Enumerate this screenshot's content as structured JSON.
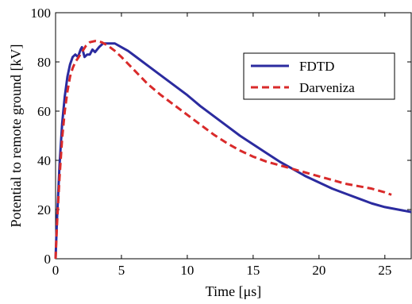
{
  "chart_data": {
    "type": "line",
    "xlabel": "Time [μs]",
    "ylabel": "Potential to remote ground [kV]",
    "xlim": [
      0,
      27
    ],
    "ylim": [
      0,
      100
    ],
    "xticks": [
      0,
      5,
      10,
      15,
      20,
      25
    ],
    "yticks": [
      0,
      20,
      40,
      60,
      80,
      100
    ],
    "x_tick_labels": [
      "0",
      "5",
      "10",
      "15",
      "20",
      "25"
    ],
    "y_tick_labels": [
      "0",
      "20",
      "40",
      "60",
      "80",
      "100"
    ],
    "grid": false,
    "legend_position": "top-right",
    "series": [
      {
        "name": "FDTD",
        "color": "#2b2b9f",
        "style": "solid",
        "x": [
          0,
          0.1,
          0.3,
          0.5,
          0.7,
          0.9,
          1.1,
          1.3,
          1.5,
          1.7,
          1.9,
          2.0,
          2.2,
          2.4,
          2.6,
          2.8,
          3.0,
          3.3,
          3.6,
          4.0,
          4.5,
          5.0,
          5.5,
          6.0,
          7.0,
          8.0,
          9.0,
          10.0,
          11.0,
          12.0,
          13.0,
          14.0,
          15.0,
          16.0,
          17.0,
          18.0,
          19.0,
          20.0,
          21.0,
          22.0,
          23.0,
          24.0,
          25.0,
          26.0,
          27.0
        ],
        "values": [
          0,
          15,
          38,
          55,
          66,
          74,
          79,
          82,
          83,
          82,
          85,
          86,
          82,
          83,
          83,
          85,
          84,
          86,
          87.5,
          87.5,
          87.5,
          86,
          84.5,
          82.5,
          78.5,
          74.5,
          70.5,
          66.5,
          62,
          58,
          54,
          50,
          46.5,
          43,
          39.5,
          36.5,
          33.5,
          31,
          28.5,
          26.5,
          24.5,
          22.5,
          21,
          20,
          19
        ]
      },
      {
        "name": "Darveniza",
        "color": "#d92a2a",
        "style": "dashed",
        "x": [
          0,
          0.1,
          0.3,
          0.5,
          0.7,
          0.9,
          1.1,
          1.3,
          1.5,
          1.7,
          2.0,
          2.3,
          2.6,
          3.0,
          3.5,
          4.0,
          4.5,
          5.0,
          6.0,
          7.0,
          8.0,
          9.0,
          10.0,
          11.0,
          12.0,
          13.0,
          14.0,
          15.0,
          16.0,
          17.0,
          18.0,
          19.0,
          20.0,
          21.0,
          22.0,
          23.0,
          24.0,
          25.0,
          25.5
        ],
        "values": [
          0,
          13,
          33,
          49,
          60,
          68,
          74,
          77.5,
          80,
          81.5,
          84,
          86.5,
          88,
          88.5,
          88,
          86.5,
          84.5,
          82,
          76.5,
          71,
          66.5,
          62.5,
          58.5,
          54.5,
          50.5,
          47,
          44,
          41.5,
          39.5,
          38,
          36.5,
          35,
          33.5,
          32,
          30.5,
          29.5,
          28.5,
          27,
          26
        ]
      }
    ]
  }
}
